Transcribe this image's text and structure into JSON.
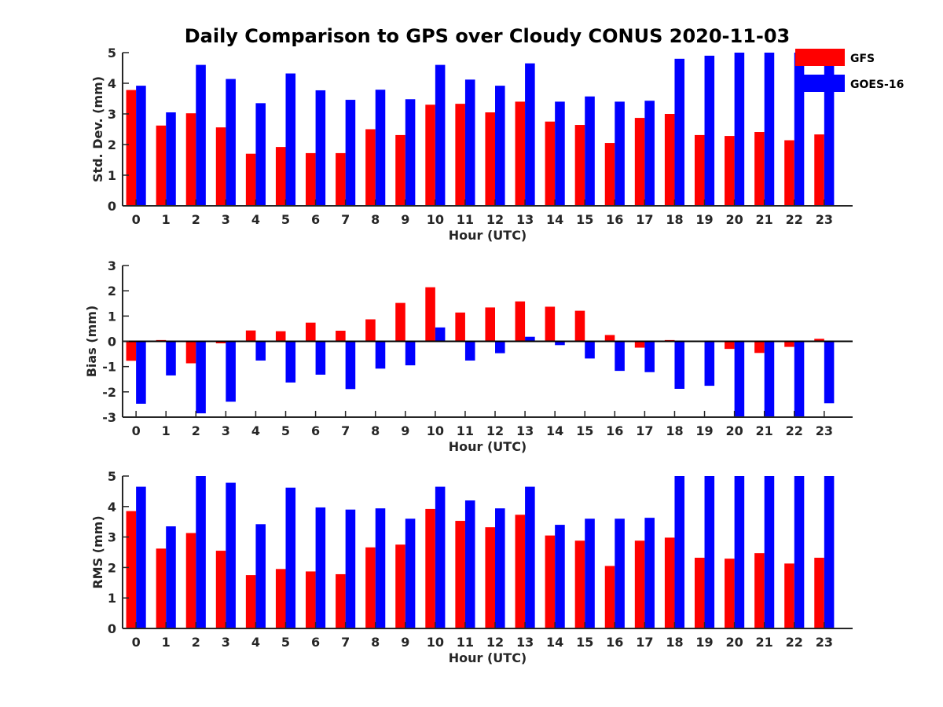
{
  "title": "Daily Comparison to GPS over Cloudy CONUS 2020-11-03",
  "legend": {
    "placement": "top-right",
    "entries": [
      {
        "name": "GFS",
        "color": "#ff0000"
      },
      {
        "name": "GOES-16",
        "color": "#0000ff"
      }
    ]
  },
  "chart_data": [
    {
      "type": "bar",
      "ylabel": "Std. Dev. (mm)",
      "xlabel": "Hour (UTC)",
      "ylim": [
        0,
        5
      ],
      "yticks": [
        0,
        1,
        2,
        3,
        4,
        5
      ],
      "categories": [
        "0",
        "1",
        "2",
        "3",
        "4",
        "5",
        "6",
        "7",
        "8",
        "9",
        "10",
        "11",
        "12",
        "13",
        "14",
        "15",
        "16",
        "17",
        "18",
        "19",
        "20",
        "21",
        "22",
        "23"
      ],
      "series": [
        {
          "name": "GFS",
          "color": "#ff0000",
          "values": [
            3.78,
            2.62,
            3.02,
            2.56,
            1.7,
            1.92,
            1.72,
            1.72,
            2.5,
            2.31,
            3.3,
            3.33,
            3.05,
            3.4,
            2.75,
            2.64,
            2.05,
            2.87,
            3.0,
            2.31,
            2.28,
            2.41,
            2.14,
            2.33
          ]
        },
        {
          "name": "GOES-16",
          "color": "#0000ff",
          "values": [
            3.92,
            3.05,
            4.6,
            4.14,
            3.35,
            4.32,
            3.77,
            3.46,
            3.79,
            3.48,
            4.6,
            4.12,
            3.92,
            4.65,
            3.4,
            3.57,
            3.4,
            3.43,
            4.8,
            4.9,
            5.0,
            5.0,
            5.0,
            4.6
          ]
        }
      ]
    },
    {
      "type": "bar",
      "ylabel": "Bias (mm)",
      "xlabel": "Hour (UTC)",
      "ylim": [
        -3,
        3
      ],
      "yticks": [
        -3,
        -2,
        -1,
        0,
        1,
        2,
        3
      ],
      "categories": [
        "0",
        "1",
        "2",
        "3",
        "4",
        "5",
        "6",
        "7",
        "8",
        "9",
        "10",
        "11",
        "12",
        "13",
        "14",
        "15",
        "16",
        "17",
        "18",
        "19",
        "20",
        "21",
        "22",
        "23"
      ],
      "series": [
        {
          "name": "GFS",
          "color": "#ff0000",
          "values": [
            -0.77,
            0.05,
            -0.87,
            -0.08,
            0.43,
            0.4,
            0.74,
            0.42,
            0.87,
            1.52,
            2.14,
            1.14,
            1.34,
            1.58,
            1.37,
            1.21,
            0.25,
            -0.25,
            0.05,
            0.02,
            -0.3,
            -0.46,
            -0.22,
            0.1
          ]
        },
        {
          "name": "GOES-16",
          "color": "#0000ff",
          "values": [
            -2.47,
            -1.35,
            -2.85,
            -2.39,
            -0.76,
            -1.63,
            -1.32,
            -1.89,
            -1.08,
            -0.95,
            0.55,
            -0.76,
            -0.47,
            0.18,
            -0.15,
            -0.68,
            -1.17,
            -1.22,
            -1.88,
            -1.76,
            -3.0,
            -3.0,
            -3.0,
            -2.45
          ]
        }
      ]
    },
    {
      "type": "bar",
      "ylabel": "RMS (mm)",
      "xlabel": "Hour (UTC)",
      "ylim": [
        0,
        5
      ],
      "yticks": [
        0,
        1,
        2,
        3,
        4,
        5
      ],
      "categories": [
        "0",
        "1",
        "2",
        "3",
        "4",
        "5",
        "6",
        "7",
        "8",
        "9",
        "10",
        "11",
        "12",
        "13",
        "14",
        "15",
        "16",
        "17",
        "18",
        "19",
        "20",
        "21",
        "22",
        "23"
      ],
      "series": [
        {
          "name": "GFS",
          "color": "#ff0000",
          "values": [
            3.85,
            2.62,
            3.13,
            2.55,
            1.75,
            1.95,
            1.87,
            1.78,
            2.66,
            2.75,
            3.92,
            3.53,
            3.32,
            3.73,
            3.05,
            2.88,
            2.05,
            2.88,
            2.98,
            2.32,
            2.29,
            2.47,
            2.13,
            2.32
          ]
        },
        {
          "name": "GOES-16",
          "color": "#0000ff",
          "values": [
            4.65,
            3.35,
            5.0,
            4.78,
            3.42,
            4.62,
            3.97,
            3.9,
            3.94,
            3.6,
            4.65,
            4.2,
            3.94,
            4.65,
            3.4,
            3.6,
            3.6,
            3.63,
            5.0,
            5.0,
            5.0,
            5.0,
            5.0,
            5.0
          ]
        }
      ]
    }
  ]
}
